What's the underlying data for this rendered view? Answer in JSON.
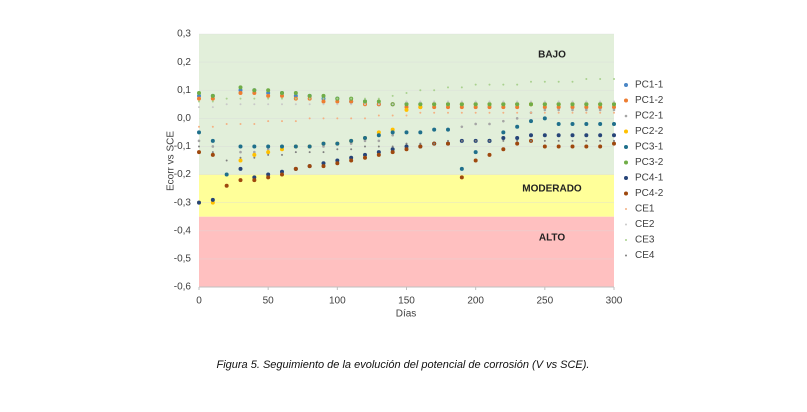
{
  "chart_data": {
    "type": "scatter",
    "x_label": "Días",
    "y_label": "Ecorr vs SCE",
    "caption": "Figura 5. Seguimiento de la evolución del potencial de corrosión (V vs SCE).",
    "xlim": [
      0,
      300
    ],
    "xticks": [
      0,
      50,
      100,
      150,
      200,
      250,
      300
    ],
    "ylim": [
      -0.6,
      0.3
    ],
    "yticks": [
      {
        "value": 0.3,
        "label": "0,3"
      },
      {
        "value": 0.2,
        "label": "0,2"
      },
      {
        "value": 0.1,
        "label": "0,1"
      },
      {
        "value": 0,
        "label": "0,0"
      },
      {
        "value": -0.1,
        "label": "-0,1"
      },
      {
        "value": -0.2,
        "label": "-0,2"
      },
      {
        "value": -0.3,
        "label": "-0,3"
      },
      {
        "value": -0.4,
        "label": "-0,4"
      },
      {
        "value": -0.5,
        "label": "-0,5"
      },
      {
        "value": -0.6,
        "label": "-0,6"
      }
    ],
    "grid": true,
    "legend": "right",
    "zones": [
      {
        "label": "BAJO",
        "from": -0.2,
        "to": 0.3,
        "color": "#e2efda"
      },
      {
        "label": "MODERADO",
        "from": -0.35,
        "to": -0.2,
        "color": "#ffff99"
      },
      {
        "label": "ALTO",
        "from": -0.6,
        "to": -0.35,
        "color": "#ffc0c0"
      }
    ],
    "x": [
      0,
      10,
      20,
      30,
      40,
      50,
      60,
      70,
      80,
      90,
      100,
      110,
      120,
      130,
      140,
      150,
      160,
      170,
      180,
      190,
      200,
      210,
      220,
      230,
      240,
      250,
      260,
      270,
      280,
      290,
      300
    ],
    "series": [
      {
        "name": "PC1-1",
        "color": "#4a86c5",
        "size": 2,
        "values": [
          0.08,
          0.08,
          null,
          0.1,
          0.1,
          0.09,
          0.09,
          0.08,
          0.08,
          0.07,
          0.07,
          0.06,
          0.06,
          0.05,
          0.05,
          0.05,
          0.05,
          0.05,
          0.05,
          0.05,
          0.05,
          0.05,
          0.05,
          0.05,
          0.05,
          0.05,
          0.05,
          0.05,
          0.05,
          0.05,
          0.05
        ]
      },
      {
        "name": "PC1-2",
        "color": "#ed7d31",
        "size": 2,
        "values": [
          0.07,
          0.07,
          null,
          0.09,
          0.09,
          0.08,
          0.08,
          0.07,
          0.07,
          0.06,
          0.06,
          0.06,
          0.05,
          0.05,
          0.05,
          0.04,
          0.04,
          0.04,
          0.04,
          0.04,
          0.04,
          0.04,
          0.04,
          0.04,
          0.05,
          0.04,
          0.04,
          0.04,
          0.04,
          0.04,
          0.04
        ]
      },
      {
        "name": "PC2-1",
        "color": "#a5a5a5",
        "size": 1.3,
        "values": [
          -0.08,
          -0.1,
          null,
          -0.12,
          -0.12,
          -0.11,
          -0.11,
          -0.1,
          -0.1,
          -0.1,
          -0.09,
          -0.09,
          -0.08,
          -0.08,
          -0.06,
          -0.05,
          -0.05,
          -0.04,
          -0.04,
          -0.03,
          -0.02,
          -0.02,
          -0.01,
          0,
          0.02,
          0.03,
          0.03,
          0.03,
          0.03,
          0.03,
          0.03
        ]
      },
      {
        "name": "PC2-2",
        "color": "#ffc000",
        "size": 2,
        "values": [
          -0.3,
          -0.3,
          null,
          -0.15,
          -0.13,
          -0.12,
          -0.11,
          -0.1,
          -0.1,
          -0.09,
          -0.09,
          -0.08,
          -0.07,
          -0.05,
          -0.04,
          0.03,
          0.04,
          0.05,
          0.05,
          0.05,
          0.05,
          0.05,
          0.05,
          0.05,
          0.05,
          0.05,
          0.05,
          0.05,
          0.05,
          0.05,
          0.05
        ]
      },
      {
        "name": "PC3-1",
        "color": "#1f6f8b",
        "size": 2,
        "values": [
          -0.05,
          -0.08,
          -0.2,
          -0.1,
          -0.1,
          -0.1,
          -0.1,
          -0.1,
          -0.1,
          -0.09,
          -0.09,
          -0.08,
          -0.07,
          -0.06,
          -0.05,
          -0.05,
          -0.05,
          -0.04,
          -0.04,
          -0.18,
          -0.12,
          -0.08,
          -0.05,
          -0.03,
          -0.01,
          0,
          -0.02,
          -0.02,
          -0.02,
          -0.02,
          -0.02
        ]
      },
      {
        "name": "PC3-2",
        "color": "#70ad47",
        "size": 2,
        "values": [
          0.09,
          0.08,
          null,
          0.11,
          0.1,
          0.1,
          0.09,
          0.09,
          0.08,
          0.08,
          0.07,
          0.07,
          0.06,
          0.06,
          0.05,
          0.05,
          0.05,
          0.05,
          0.05,
          0.05,
          0.05,
          0.05,
          0.05,
          0.05,
          0.05,
          0.05,
          0.05,
          0.05,
          0.05,
          0.05,
          0.05
        ]
      },
      {
        "name": "PC4-1",
        "color": "#264478",
        "size": 2,
        "values": [
          -0.3,
          -0.29,
          null,
          -0.18,
          -0.21,
          -0.2,
          -0.19,
          -0.18,
          -0.17,
          -0.16,
          -0.15,
          -0.14,
          -0.13,
          -0.12,
          -0.11,
          -0.1,
          -0.1,
          -0.09,
          -0.09,
          -0.08,
          -0.08,
          -0.08,
          -0.07,
          -0.07,
          -0.06,
          -0.06,
          -0.06,
          -0.06,
          -0.06,
          -0.06,
          -0.06
        ]
      },
      {
        "name": "PC4-2",
        "color": "#9e480e",
        "size": 2,
        "values": [
          -0.12,
          -0.13,
          -0.24,
          -0.22,
          -0.22,
          -0.21,
          -0.2,
          -0.18,
          -0.17,
          -0.17,
          -0.16,
          -0.15,
          -0.14,
          -0.13,
          -0.12,
          -0.11,
          -0.1,
          -0.09,
          -0.09,
          -0.21,
          -0.15,
          -0.13,
          -0.11,
          -0.09,
          -0.08,
          -0.1,
          -0.1,
          -0.1,
          -0.1,
          -0.1,
          -0.09
        ]
      },
      {
        "name": "CE1",
        "color": "#f4b183",
        "size": 1,
        "values": [
          -0.03,
          -0.03,
          -0.02,
          -0.02,
          -0.02,
          -0.01,
          -0.01,
          -0.01,
          0,
          0,
          0,
          0,
          0,
          0.01,
          0.01,
          0.01,
          0.02,
          0.02,
          0.02,
          0.02,
          0.02,
          0.02,
          0.02,
          0.02,
          0.02,
          0.02,
          0.02,
          0.02,
          0.02,
          0.02,
          0.02
        ]
      },
      {
        "name": "CE2",
        "color": "#c9c9c9",
        "size": 1,
        "values": [
          0.04,
          0.04,
          0.05,
          0.05,
          0.05,
          0.05,
          0.05,
          0.05,
          0.05,
          0.05,
          0.05,
          0.05,
          0.05,
          0.05,
          0.05,
          0.06,
          0.06,
          0.06,
          0.06,
          0.06,
          0.06,
          0.06,
          0.06,
          0.06,
          0.06,
          0.06,
          0.06,
          0.06,
          0.06,
          0.06,
          0.06
        ]
      },
      {
        "name": "CE3",
        "color": "#a9d18e",
        "size": 1,
        "values": [
          0.06,
          0.06,
          0.07,
          0.07,
          0.07,
          0.07,
          0.07,
          0.07,
          0.07,
          0.07,
          0.07,
          0.07,
          0.07,
          0.07,
          0.08,
          0.09,
          0.1,
          0.1,
          0.11,
          0.11,
          0.12,
          0.12,
          0.12,
          0.12,
          0.13,
          0.13,
          0.13,
          0.13,
          0.14,
          0.14,
          0.14
        ]
      },
      {
        "name": "CE4",
        "color": "#7f7f7f",
        "size": 1,
        "values": [
          -0.1,
          -0.12,
          -0.15,
          -0.14,
          -0.14,
          -0.13,
          -0.13,
          -0.12,
          -0.12,
          -0.12,
          -0.11,
          -0.11,
          -0.1,
          -0.1,
          -0.1,
          -0.09,
          -0.09,
          -0.09,
          -0.08,
          -0.08,
          -0.08,
          -0.08,
          -0.08,
          -0.08,
          -0.08,
          -0.08,
          -0.08,
          -0.08,
          -0.08,
          -0.08,
          -0.08
        ]
      }
    ]
  }
}
